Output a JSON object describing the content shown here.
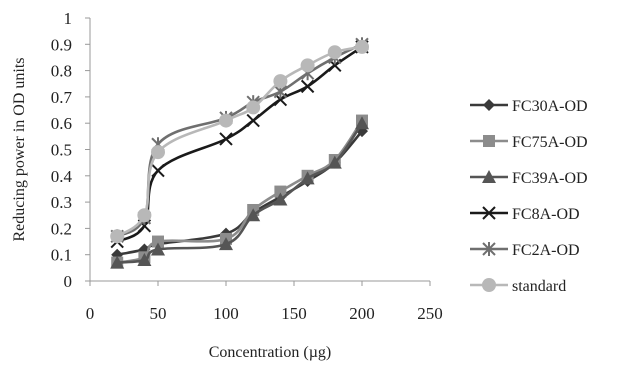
{
  "chart_data": {
    "type": "line",
    "title": "",
    "xlabel": "Concentration (µg)",
    "ylabel": "Reducing power in  OD units",
    "xlim": [
      0,
      250
    ],
    "ylim": [
      0,
      1
    ],
    "x_ticks": [
      "0",
      "50",
      "100",
      "150",
      "200",
      "250"
    ],
    "y_ticks": [
      "0",
      "0.1",
      "0.2",
      "0.3",
      "0.4",
      "0.5",
      "0.6",
      "0.7",
      "0.8",
      "0.9",
      "1"
    ],
    "grid": false,
    "legend_position": "right",
    "x": [
      20,
      40,
      50,
      100,
      120,
      140,
      160,
      180,
      200
    ],
    "series": [
      {
        "name": "FC30A-OD",
        "color": "#3a3a3a",
        "marker": "diamond",
        "values": [
          0.1,
          0.12,
          0.14,
          0.18,
          0.26,
          0.32,
          0.38,
          0.45,
          0.57
        ]
      },
      {
        "name": "FC75A-OD",
        "color": "#8c8c8c",
        "marker": "square",
        "values": [
          0.07,
          0.09,
          0.15,
          0.16,
          0.27,
          0.34,
          0.4,
          0.46,
          0.61
        ]
      },
      {
        "name": "FC39A-OD",
        "color": "#555555",
        "marker": "triangle",
        "values": [
          0.07,
          0.08,
          0.12,
          0.14,
          0.25,
          0.31,
          0.39,
          0.45,
          0.6
        ]
      },
      {
        "name": "FC8A-OD",
        "color": "#1a1a1a",
        "marker": "x",
        "values": [
          0.15,
          0.21,
          0.42,
          0.54,
          0.61,
          0.69,
          0.74,
          0.82,
          0.89
        ]
      },
      {
        "name": "FC2A-OD",
        "color": "#6f6f6f",
        "marker": "star",
        "values": [
          0.17,
          0.24,
          0.52,
          0.62,
          0.68,
          0.72,
          0.79,
          0.85,
          0.9
        ]
      },
      {
        "name": "standard",
        "color": "#b8b8b8",
        "marker": "circle",
        "values": [
          0.17,
          0.25,
          0.49,
          0.61,
          0.66,
          0.76,
          0.82,
          0.87,
          0.89
        ]
      }
    ]
  }
}
